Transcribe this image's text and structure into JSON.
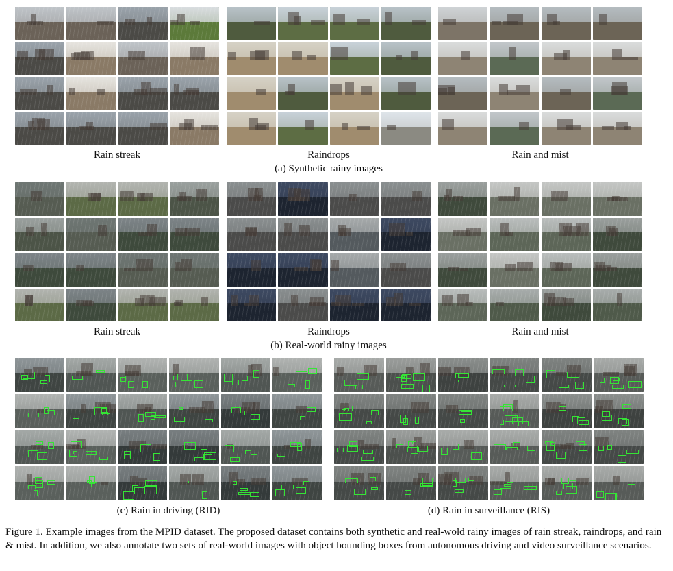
{
  "panel_a": {
    "labels": [
      "Rain streak",
      "Raindrops",
      "Rain and mist"
    ],
    "caption": "(a) Synthetic rainy images"
  },
  "panel_b": {
    "labels": [
      "Rain streak",
      "Raindrops",
      "Rain and mist"
    ],
    "caption": "(b) Real-world rainy images"
  },
  "panel_c": {
    "caption": "(c) Rain in driving (RID)"
  },
  "panel_d": {
    "caption": "(d) Rain in surveillance (RIS)"
  },
  "figure_caption": "Figure 1. Example images from the MPID dataset. The proposed dataset contains both synthetic and real-wold rainy images of rain streak, raindrops, and rain & mist. In addition, we also annotate two sets of real-world images with object bounding boxes from autonomous driving and video surveillance scenarios."
}
